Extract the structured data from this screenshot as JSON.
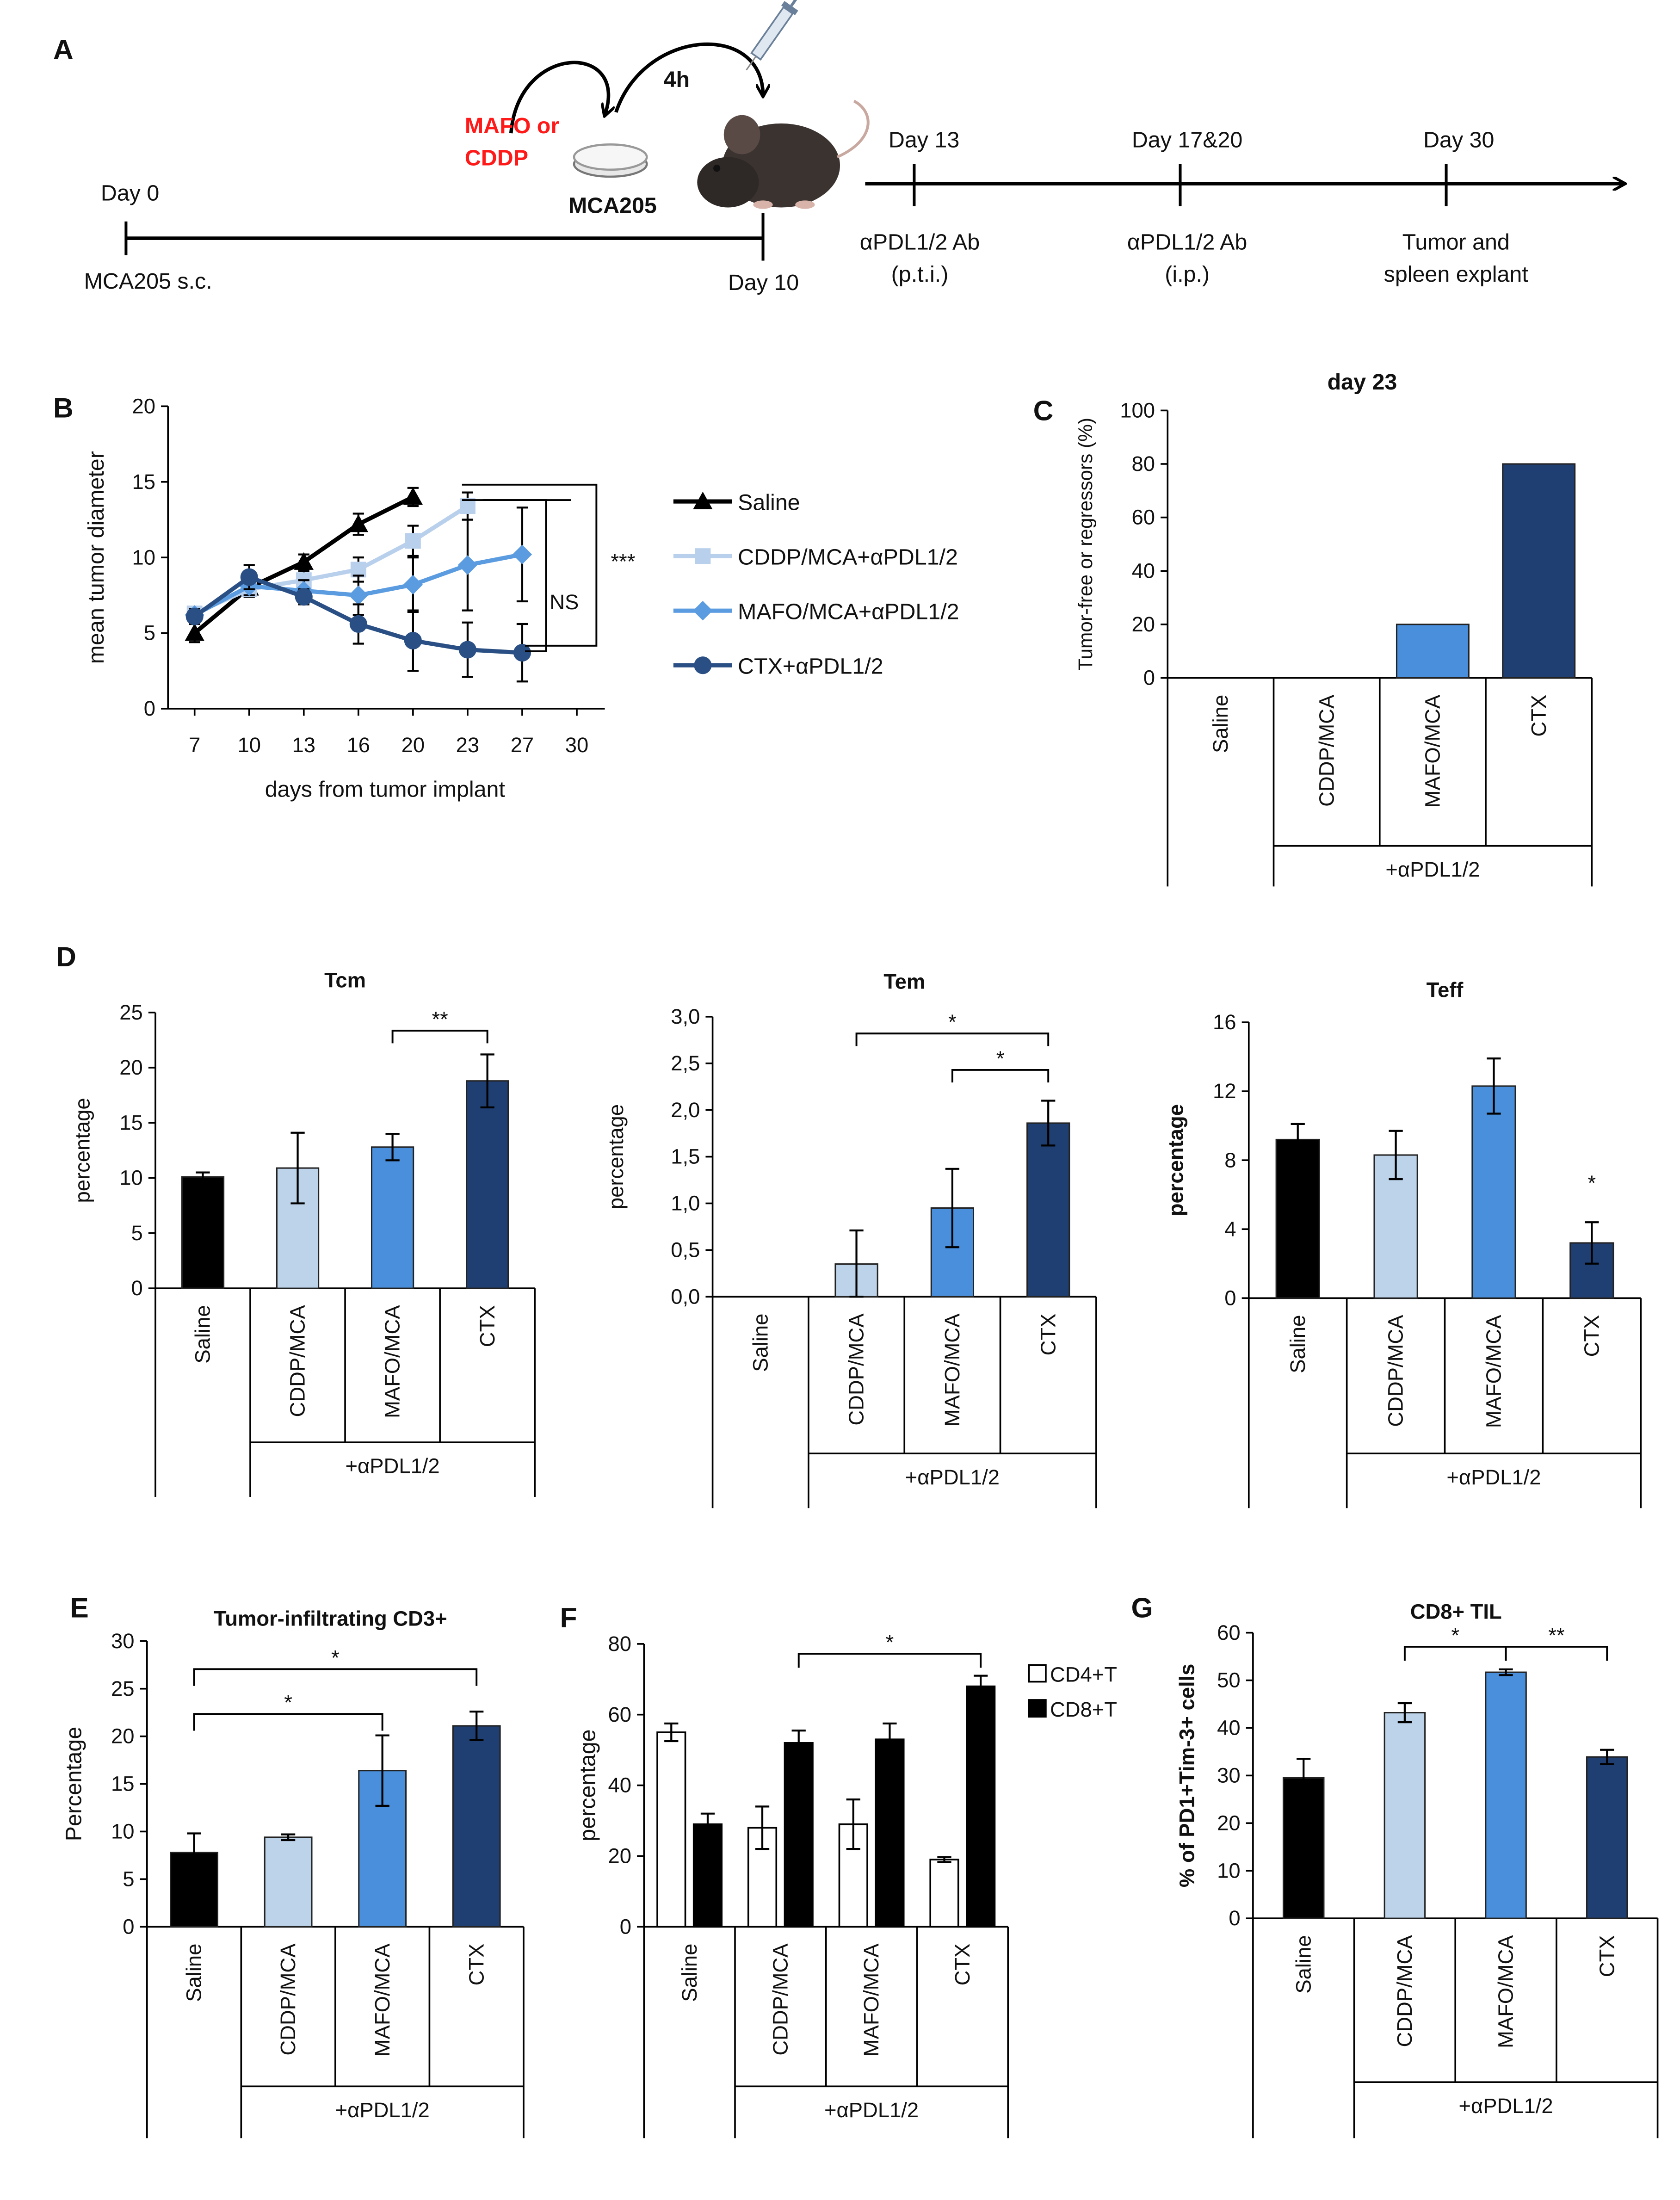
{
  "colors": {
    "black": "#000000",
    "light_blue": "#bcd3ea",
    "mid_blue": "#4a8fdb",
    "dark_blue": "#1f3f73",
    "saline_line": "#000000",
    "cddp_line": "#b9d0ec",
    "mafo_line": "#5b9be0",
    "ctx_line": "#2a4f84",
    "red": "#ff1a1a"
  },
  "panel_a": {
    "letter": "A",
    "mafo": "MAFO or",
    "cddp": "CDDP",
    "four_h": "4h",
    "cell_label": "MCA205",
    "day0": "Day 0",
    "mca_sc": "MCA205 s.c.",
    "day10": "Day 10",
    "day13": "Day 13",
    "day13_sub1": "αPDL1/2  Ab",
    "day13_sub2": "(p.t.i.)",
    "day1720": "Day 17&20",
    "day1720_sub1": "αPDL1/2  Ab",
    "day1720_sub2": "(i.p.)",
    "day30": "Day 30",
    "day30_sub1": "Tumor and",
    "day30_sub2": "spleen explant"
  },
  "chart_data": [
    {
      "panel": "B",
      "type": "line",
      "ylabel": "mean tumor diameter",
      "xlabel": "days from tumor implant",
      "xticks": [
        "7",
        "10",
        "13",
        "16",
        "20",
        "23",
        "27",
        "30"
      ],
      "yticks": [
        "0",
        "5",
        "10",
        "15",
        "20"
      ],
      "ylim": [
        0,
        20
      ],
      "series": [
        {
          "name": "Saline",
          "x": [
            "7",
            "10",
            "13",
            "16",
            "20"
          ],
          "values": [
            5.0,
            8.0,
            9.7,
            12.2,
            14.0
          ],
          "errors": [
            0.6,
            0.5,
            0.5,
            0.7,
            0.6
          ]
        },
        {
          "name": "CDDP/MCA+αPDL1/2",
          "x": [
            "7",
            "10",
            "13",
            "16",
            "20",
            "23"
          ],
          "values": [
            6.3,
            7.9,
            8.5,
            9.2,
            11.1,
            13.4
          ],
          "errors": [
            0.4,
            0.5,
            0.6,
            0.8,
            1.0,
            0.9
          ]
        },
        {
          "name": "MAFO/MCA+αPDL1/2",
          "x": [
            "7",
            "10",
            "13",
            "16",
            "20",
            "23",
            "27"
          ],
          "values": [
            6.2,
            8.1,
            7.8,
            7.5,
            8.2,
            9.5,
            10.2
          ],
          "errors": [
            0.4,
            0.6,
            0.7,
            1.3,
            1.8,
            3.0,
            3.1
          ]
        },
        {
          "name": "CTX+αPDL1/2",
          "x": [
            "7",
            "10",
            "13",
            "16",
            "20",
            "23",
            "27"
          ],
          "values": [
            6.1,
            8.7,
            7.4,
            5.6,
            4.5,
            3.9,
            3.7
          ],
          "errors": [
            0.4,
            0.8,
            0.5,
            1.3,
            2.0,
            1.8,
            1.9
          ]
        }
      ],
      "annotations": [
        "NS",
        "***"
      ]
    },
    {
      "panel": "C",
      "type": "bar",
      "title": "day 23",
      "ylabel": "Tumor-free or regressors (%)",
      "categories": [
        "Saline",
        "CDDP/MCA",
        "MAFO/MCA",
        "CTX"
      ],
      "values": [
        0,
        0,
        20,
        80
      ],
      "ylim": [
        0,
        100
      ],
      "yticks": [
        "0",
        "20",
        "40",
        "60",
        "80",
        "100"
      ],
      "group_label": "+αPDL1/2"
    },
    {
      "panel": "D",
      "type": "bar",
      "title": "Tcm",
      "ylabel": "percentage",
      "categories": [
        "Saline",
        "CDDP/MCA",
        "MAFO/MCA",
        "CTX"
      ],
      "values": [
        10.1,
        10.9,
        12.8,
        18.8
      ],
      "errors": [
        0.4,
        3.2,
        1.2,
        2.4
      ],
      "ylim": [
        0,
        25
      ],
      "yticks": [
        "0",
        "5",
        "10",
        "15",
        "20",
        "25"
      ],
      "group_label": "+αPDL1/2",
      "annotations": [
        "**"
      ]
    },
    {
      "panel": "D",
      "type": "bar",
      "title": "Tem",
      "ylabel": "percentage",
      "categories": [
        "Saline",
        "CDDP/MCA",
        "MAFO/MCA",
        "CTX"
      ],
      "values": [
        0,
        0.35,
        0.95,
        1.86
      ],
      "errors": [
        0,
        0.36,
        0.42,
        0.24
      ],
      "ylim": [
        0,
        3
      ],
      "yticks": [
        "0,0",
        "0,5",
        "1,0",
        "1,5",
        "2,0",
        "2,5",
        "3,0"
      ],
      "group_label": "+αPDL1/2",
      "annotations": [
        "*",
        "*"
      ]
    },
    {
      "panel": "D",
      "type": "bar",
      "title": "Teff",
      "ylabel": "percentage",
      "categories": [
        "Saline",
        "CDDP/MCA",
        "MAFO/MCA",
        "CTX"
      ],
      "values": [
        9.2,
        8.3,
        12.3,
        3.2
      ],
      "errors": [
        0.9,
        1.4,
        1.6,
        1.2
      ],
      "ylim": [
        0,
        16
      ],
      "yticks": [
        "0",
        "4",
        "8",
        "12",
        "16"
      ],
      "group_label": "+αPDL1/2",
      "annotations": [
        "*"
      ]
    },
    {
      "panel": "E",
      "type": "bar",
      "title": "Tumor-infiltrating CD3+",
      "ylabel": "Percentage",
      "categories": [
        "Saline",
        "CDDP/MCA",
        "MAFO/MCA",
        "CTX"
      ],
      "values": [
        7.8,
        9.4,
        16.4,
        21.1
      ],
      "errors": [
        2.0,
        0.3,
        3.7,
        1.5
      ],
      "ylim": [
        0,
        30
      ],
      "yticks": [
        "0",
        "5",
        "10",
        "15",
        "20",
        "25",
        "30"
      ],
      "group_label": "+αPDL1/2",
      "annotations": [
        "*",
        "*"
      ]
    },
    {
      "panel": "F",
      "type": "bar",
      "ylabel": "percentage",
      "categories": [
        "Saline",
        "CDDP/MCA",
        "MAFO/MCA",
        "CTX"
      ],
      "series": [
        {
          "name": "CD4+T",
          "values": [
            55,
            28,
            29,
            19
          ],
          "errors": [
            2.5,
            6,
            7,
            0.7
          ]
        },
        {
          "name": "CD8+T",
          "values": [
            29,
            52,
            53,
            68
          ],
          "errors": [
            3,
            3.5,
            4.5,
            3
          ]
        }
      ],
      "ylim": [
        0,
        80
      ],
      "yticks": [
        "0",
        "20",
        "40",
        "60",
        "80"
      ],
      "group_label": "+αPDL1/2",
      "annotations": [
        "*"
      ]
    },
    {
      "panel": "G",
      "type": "bar",
      "title": "CD8+ TIL",
      "ylabel": "% of PD1+Tim-3+ cells",
      "categories": [
        "Saline",
        "CDDP/MCA",
        "MAFO/MCA",
        "CTX"
      ],
      "values": [
        29.5,
        43.2,
        51.7,
        33.9
      ],
      "errors": [
        4.0,
        2.0,
        0.6,
        1.5
      ],
      "ylim": [
        0,
        60
      ],
      "yticks": [
        "0",
        "10",
        "20",
        "30",
        "40",
        "50",
        "60"
      ],
      "group_label": "+αPDL1/2",
      "annotations": [
        "*",
        "**"
      ]
    }
  ],
  "letters": {
    "b": "B",
    "c": "C",
    "d": "D",
    "e": "E",
    "f": "F",
    "g": "G"
  }
}
